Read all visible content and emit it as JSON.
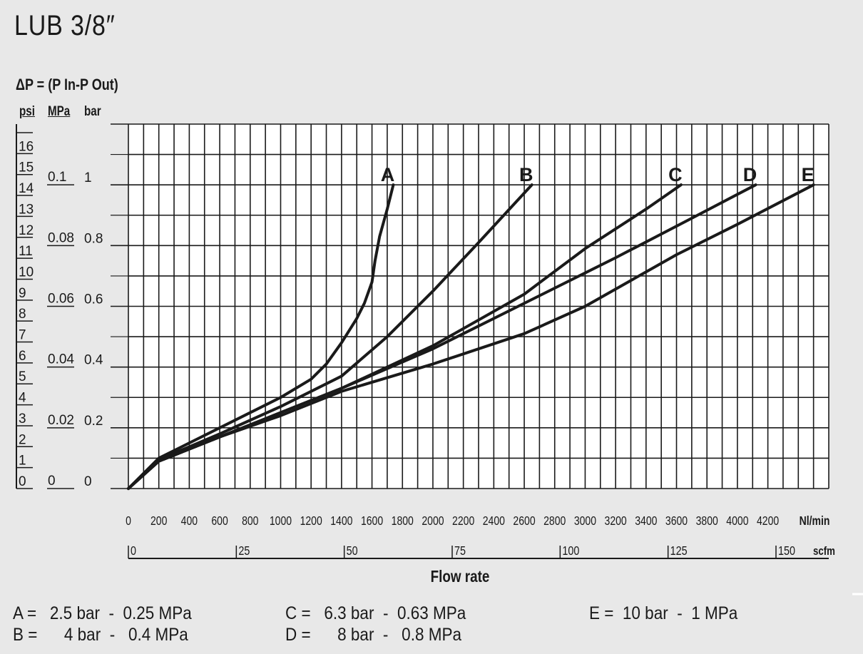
{
  "title": "LUB  3/8″",
  "y_axis_title": "ΔP = (P In-P Out)",
  "unit_headers": {
    "psi": "psi",
    "mpa": "MPa",
    "bar": "bar"
  },
  "legend": [
    {
      "text": "A =   2.5 bar  -  0.25 MPa"
    },
    {
      "text": "B =      4 bar  -   0.4 MPa"
    },
    {
      "text": "C =   6.3 bar  -  0.63 MPa"
    },
    {
      "text": "D =      8 bar  -   0.8 MPa"
    },
    {
      "text": "E =  10 bar  -  1 MPa"
    }
  ],
  "chart_data": {
    "type": "line",
    "title": "LUB 3/8″",
    "xlabel": "Flow rate",
    "ylabel": "ΔP = (P In-P Out)",
    "xlim": [
      0,
      4600
    ],
    "ylim": [
      0,
      1.2
    ],
    "grid": true,
    "x_ticks": [
      {
        "v": 0,
        "label": "0"
      },
      {
        "v": 200,
        "label": "200"
      },
      {
        "v": 400,
        "label": "400"
      },
      {
        "v": 600,
        "label": "600"
      },
      {
        "v": 800,
        "label": "800"
      },
      {
        "v": 1000,
        "label": "1000"
      },
      {
        "v": 1200,
        "label": "1200"
      },
      {
        "v": 1400,
        "label": "1400"
      },
      {
        "v": 1600,
        "label": "1600"
      },
      {
        "v": 1800,
        "label": "1800"
      },
      {
        "v": 2000,
        "label": "2000"
      },
      {
        "v": 2200,
        "label": "2200"
      },
      {
        "v": 2400,
        "label": "2400"
      },
      {
        "v": 2600,
        "label": "2600"
      },
      {
        "v": 2800,
        "label": "2800"
      },
      {
        "v": 3000,
        "label": "3000"
      },
      {
        "v": 3200,
        "label": "3200"
      },
      {
        "v": 3400,
        "label": "3400"
      },
      {
        "v": 3600,
        "label": "3600"
      },
      {
        "v": 3800,
        "label": "3800"
      },
      {
        "v": 4000,
        "label": "4000"
      },
      {
        "v": 4200,
        "label": "4200"
      }
    ],
    "x_unit": "Nl/min",
    "scfm_ticks": [
      {
        "v": 0,
        "label": "0"
      },
      {
        "v": 25,
        "label": "25"
      },
      {
        "v": 50,
        "label": "50"
      },
      {
        "v": 75,
        "label": "75"
      },
      {
        "v": 100,
        "label": "100"
      },
      {
        "v": 125,
        "label": "125"
      },
      {
        "v": 150,
        "label": "150"
      }
    ],
    "scfm_unit": "scfm",
    "psi_ticks": [
      "0",
      "1",
      "2",
      "3",
      "4",
      "5",
      "6",
      "7",
      "8",
      "9",
      "10",
      "11",
      "12",
      "13",
      "14",
      "15",
      "16"
    ],
    "mpa_ticks": [
      {
        "v": 0,
        "label": "0"
      },
      {
        "v": 0.2,
        "label": "0.02"
      },
      {
        "v": 0.4,
        "label": "0.04"
      },
      {
        "v": 0.6,
        "label": "0.06"
      },
      {
        "v": 0.8,
        "label": "0.08"
      },
      {
        "v": 1.0,
        "label": "0.1"
      }
    ],
    "bar_ticks": [
      {
        "v": 0,
        "label": "0"
      },
      {
        "v": 0.2,
        "label": "0.2"
      },
      {
        "v": 0.4,
        "label": "0.4"
      },
      {
        "v": 0.6,
        "label": "0.6"
      },
      {
        "v": 0.8,
        "label": "0.8"
      },
      {
        "v": 1.0,
        "label": "1"
      }
    ],
    "series": [
      {
        "name": "A",
        "points": [
          [
            0,
            0
          ],
          [
            200,
            0.1
          ],
          [
            400,
            0.15
          ],
          [
            800,
            0.25
          ],
          [
            1000,
            0.3
          ],
          [
            1200,
            0.36
          ],
          [
            1300,
            0.41
          ],
          [
            1400,
            0.48
          ],
          [
            1500,
            0.56
          ],
          [
            1550,
            0.61
          ],
          [
            1600,
            0.68
          ],
          [
            1620,
            0.75
          ],
          [
            1650,
            0.83
          ],
          [
            1700,
            0.92
          ],
          [
            1740,
            1.0
          ]
        ]
      },
      {
        "name": "B",
        "points": [
          [
            0,
            0
          ],
          [
            200,
            0.095
          ],
          [
            600,
            0.18
          ],
          [
            1000,
            0.27
          ],
          [
            1400,
            0.37
          ],
          [
            1700,
            0.5
          ],
          [
            2000,
            0.65
          ],
          [
            2300,
            0.81
          ],
          [
            2650,
            1.0
          ]
        ]
      },
      {
        "name": "C",
        "points": [
          [
            0,
            0
          ],
          [
            200,
            0.09
          ],
          [
            600,
            0.17
          ],
          [
            1000,
            0.25
          ],
          [
            1400,
            0.33
          ],
          [
            2000,
            0.47
          ],
          [
            2600,
            0.64
          ],
          [
            3000,
            0.79
          ],
          [
            3400,
            0.92
          ],
          [
            3630,
            1.0
          ]
        ]
      },
      {
        "name": "D",
        "points": [
          [
            0,
            0
          ],
          [
            200,
            0.09
          ],
          [
            600,
            0.17
          ],
          [
            1000,
            0.25
          ],
          [
            1400,
            0.33
          ],
          [
            2000,
            0.46
          ],
          [
            2600,
            0.61
          ],
          [
            3200,
            0.76
          ],
          [
            3700,
            0.89
          ],
          [
            4120,
            1.0
          ]
        ]
      },
      {
        "name": "E",
        "points": [
          [
            0,
            0
          ],
          [
            200,
            0.09
          ],
          [
            600,
            0.17
          ],
          [
            1000,
            0.24
          ],
          [
            1400,
            0.32
          ],
          [
            2000,
            0.41
          ],
          [
            2600,
            0.51
          ],
          [
            3000,
            0.6
          ],
          [
            3600,
            0.77
          ],
          [
            4000,
            0.87
          ],
          [
            4500,
            1.0
          ]
        ]
      }
    ]
  }
}
